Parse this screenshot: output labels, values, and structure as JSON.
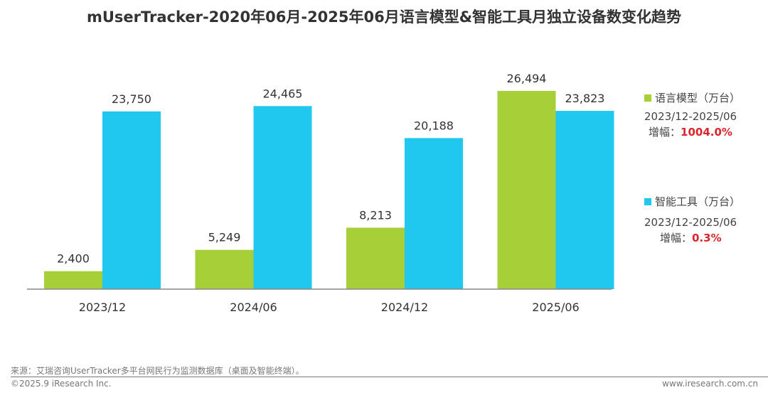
{
  "chart_data": {
    "type": "bar",
    "title": "mUserTracker-2020年06月-2025年06月语言模型&智能工具月独立设备数变化趋势",
    "categories": [
      "2023/12",
      "2024/06",
      "2024/12",
      "2025/06"
    ],
    "series": [
      {
        "name": "语言模型（万台）",
        "values": [
          2400,
          5249,
          8213,
          26494
        ],
        "labels": [
          "2,400",
          "5,249",
          "8,213",
          "26,494"
        ],
        "color": "#a6cf38"
      },
      {
        "name": "智能工具（万台）",
        "values": [
          23750,
          24465,
          20188,
          23823
        ],
        "labels": [
          "23,750",
          "24,465",
          "20,188",
          "23,823"
        ],
        "color": "#20c8ef"
      }
    ],
    "ylim": [
      0,
      30000
    ],
    "grid": false,
    "legend": "right"
  },
  "annotations": [
    {
      "period": "2023/12-2025/06",
      "growth_label": "增幅：",
      "growth": "1004.0%"
    },
    {
      "period": "2023/12-2025/06",
      "growth_label": "增幅：",
      "growth": "0.3%"
    }
  ],
  "footer": {
    "source": "来源：艾瑞咨询UserTracker多平台网民行为监测数据库（桌面及智能终端）。",
    "copyright": "©2025.9 iResearch Inc.",
    "site": "www.iresearch.com.cn"
  }
}
